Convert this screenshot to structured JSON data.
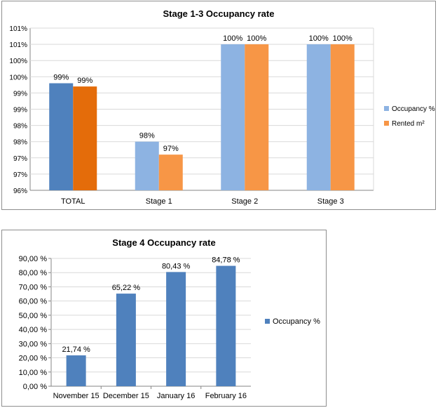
{
  "chart_data": [
    {
      "type": "bar",
      "title": "Stage 1-3 Occupancy rate",
      "categories": [
        "TOTAL",
        "Stage 1",
        "Stage 2",
        "Stage 3"
      ],
      "series": [
        {
          "name": "Occupancy %",
          "values": [
            99.3,
            97.5,
            100.5,
            100.5
          ],
          "labels": [
            "99%",
            "98%",
            "100%",
            "100%"
          ]
        },
        {
          "name": "Rented m²",
          "values": [
            99.2,
            97.1,
            100.5,
            100.5
          ],
          "labels": [
            "99%",
            "97%",
            "100%",
            "100%"
          ]
        }
      ],
      "highlight_category": "TOTAL",
      "colors": {
        "occupancy": "#8db3e2",
        "rented": "#f79646",
        "occupancy_total": "#4f81bd",
        "rented_total": "#e46c0a"
      },
      "ylim": [
        96,
        101
      ],
      "yticks": [
        96,
        96.5,
        97,
        97.5,
        98,
        98.5,
        99,
        99.5,
        100,
        100.5,
        101
      ],
      "ytick_labels": [
        "96%",
        "97%",
        "97%",
        "98%",
        "98%",
        "99%",
        "99%",
        "100%",
        "100%",
        "101%",
        "101%"
      ],
      "xlabel": "",
      "ylabel": "",
      "grid": true,
      "legend": "right"
    },
    {
      "type": "bar",
      "title": "Stage 4 Occupancy rate",
      "categories": [
        "November 15",
        "December 15",
        "January 16",
        "February 16"
      ],
      "series": [
        {
          "name": "Occupancy %",
          "values": [
            21.74,
            65.22,
            80.43,
            84.78
          ],
          "labels": [
            "21,74 %",
            "65,22 %",
            "80,43 %",
            "84,78 %"
          ]
        }
      ],
      "colors": {
        "occupancy": "#4f81bd"
      },
      "ylim": [
        0,
        90
      ],
      "yticks": [
        0,
        10,
        20,
        30,
        40,
        50,
        60,
        70,
        80,
        90
      ],
      "ytick_labels": [
        "0,00 %",
        "10,00 %",
        "20,00 %",
        "30,00 %",
        "40,00 %",
        "50,00 %",
        "60,00 %",
        "70,00 %",
        "80,00 %",
        "90,00 %"
      ],
      "xlabel": "",
      "ylabel": "",
      "grid": true,
      "legend": "right"
    }
  ]
}
